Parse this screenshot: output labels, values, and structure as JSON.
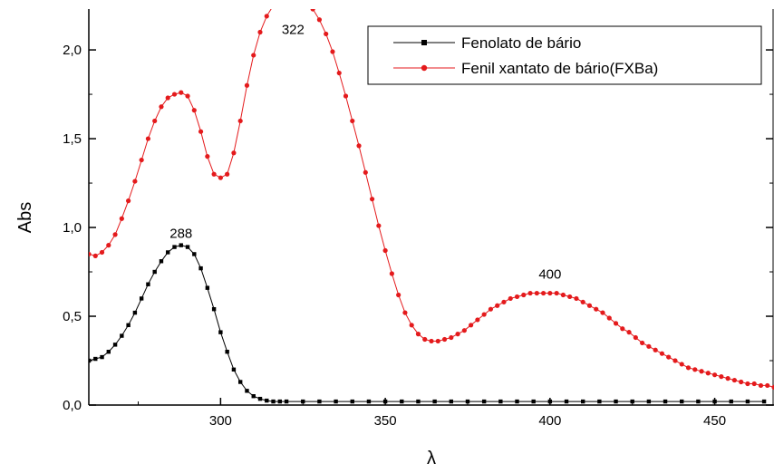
{
  "chart_data": {
    "type": "line",
    "title": "",
    "xlabel": "λ",
    "ylabel": "Abs",
    "xlim": [
      260,
      468
    ],
    "ylim": [
      0,
      2.23
    ],
    "x_ticks": [
      300,
      350,
      400,
      450
    ],
    "x_tick_labels": [
      "300",
      "350",
      "400",
      "450"
    ],
    "y_ticks": [
      0,
      0.5,
      1.0,
      1.5,
      2.0
    ],
    "y_tick_labels": [
      "0,0",
      "0,5",
      "1,0",
      "1,5",
      "2,0"
    ],
    "grid": false,
    "legend_position": "top-right",
    "series": [
      {
        "name": "Fenolato de bário",
        "color": "#000000",
        "marker": "square",
        "x": [
          260,
          262,
          264,
          266,
          268,
          270,
          272,
          274,
          276,
          278,
          280,
          282,
          284,
          286,
          288,
          290,
          292,
          294,
          296,
          298,
          300,
          302,
          304,
          306,
          308,
          310,
          312,
          314,
          316,
          318,
          320,
          325,
          330,
          335,
          340,
          345,
          350,
          355,
          360,
          365,
          370,
          375,
          380,
          385,
          390,
          395,
          400,
          405,
          410,
          415,
          420,
          425,
          430,
          435,
          440,
          445,
          450,
          455,
          460,
          465
        ],
        "y": [
          0.25,
          0.26,
          0.27,
          0.3,
          0.34,
          0.39,
          0.45,
          0.52,
          0.6,
          0.68,
          0.75,
          0.81,
          0.86,
          0.89,
          0.9,
          0.89,
          0.85,
          0.77,
          0.66,
          0.54,
          0.41,
          0.3,
          0.2,
          0.13,
          0.08,
          0.05,
          0.035,
          0.025,
          0.02,
          0.02,
          0.02,
          0.02,
          0.02,
          0.02,
          0.02,
          0.02,
          0.02,
          0.02,
          0.02,
          0.02,
          0.02,
          0.02,
          0.02,
          0.02,
          0.02,
          0.02,
          0.02,
          0.02,
          0.02,
          0.02,
          0.02,
          0.02,
          0.02,
          0.02,
          0.02,
          0.02,
          0.02,
          0.02,
          0.02,
          0.02
        ]
      },
      {
        "name": "Fenil xantato de bário(FXBa)",
        "color": "#e41a1c",
        "marker": "circle",
        "x": [
          260,
          262,
          264,
          266,
          268,
          270,
          272,
          274,
          276,
          278,
          280,
          282,
          284,
          286,
          288,
          290,
          292,
          294,
          296,
          298,
          300,
          302,
          304,
          306,
          308,
          310,
          312,
          314,
          316,
          318,
          320,
          322,
          324,
          326,
          328,
          330,
          332,
          334,
          336,
          338,
          340,
          342,
          344,
          346,
          348,
          350,
          352,
          354,
          356,
          358,
          360,
          362,
          364,
          366,
          368,
          370,
          372,
          374,
          376,
          378,
          380,
          382,
          384,
          386,
          388,
          390,
          392,
          394,
          396,
          398,
          400,
          402,
          404,
          406,
          408,
          410,
          412,
          414,
          416,
          418,
          420,
          422,
          424,
          426,
          428,
          430,
          432,
          434,
          436,
          438,
          440,
          442,
          444,
          446,
          448,
          450,
          452,
          454,
          456,
          458,
          460,
          462,
          464,
          466,
          468
        ],
        "y": [
          0.85,
          0.84,
          0.86,
          0.9,
          0.96,
          1.05,
          1.15,
          1.26,
          1.38,
          1.5,
          1.6,
          1.68,
          1.73,
          1.75,
          1.76,
          1.74,
          1.66,
          1.54,
          1.4,
          1.3,
          1.28,
          1.3,
          1.42,
          1.6,
          1.8,
          1.97,
          2.1,
          2.19,
          2.25,
          2.28,
          2.3,
          2.3,
          2.29,
          2.27,
          2.23,
          2.17,
          2.09,
          1.99,
          1.87,
          1.74,
          1.6,
          1.46,
          1.31,
          1.16,
          1.01,
          0.87,
          0.74,
          0.62,
          0.52,
          0.45,
          0.4,
          0.37,
          0.36,
          0.36,
          0.37,
          0.38,
          0.4,
          0.42,
          0.45,
          0.48,
          0.51,
          0.54,
          0.56,
          0.58,
          0.6,
          0.61,
          0.62,
          0.63,
          0.63,
          0.63,
          0.63,
          0.63,
          0.62,
          0.61,
          0.6,
          0.58,
          0.56,
          0.54,
          0.52,
          0.49,
          0.46,
          0.43,
          0.41,
          0.38,
          0.35,
          0.33,
          0.31,
          0.29,
          0.27,
          0.25,
          0.23,
          0.21,
          0.2,
          0.19,
          0.18,
          0.17,
          0.16,
          0.15,
          0.14,
          0.13,
          0.12,
          0.12,
          0.11,
          0.11,
          0.1
        ]
      }
    ],
    "annotations": [
      {
        "text": "288",
        "x": 288,
        "y": 0.9
      },
      {
        "text": "322",
        "x": 322,
        "y": 2.05
      },
      {
        "text": "400",
        "x": 400,
        "y": 0.67
      }
    ]
  }
}
